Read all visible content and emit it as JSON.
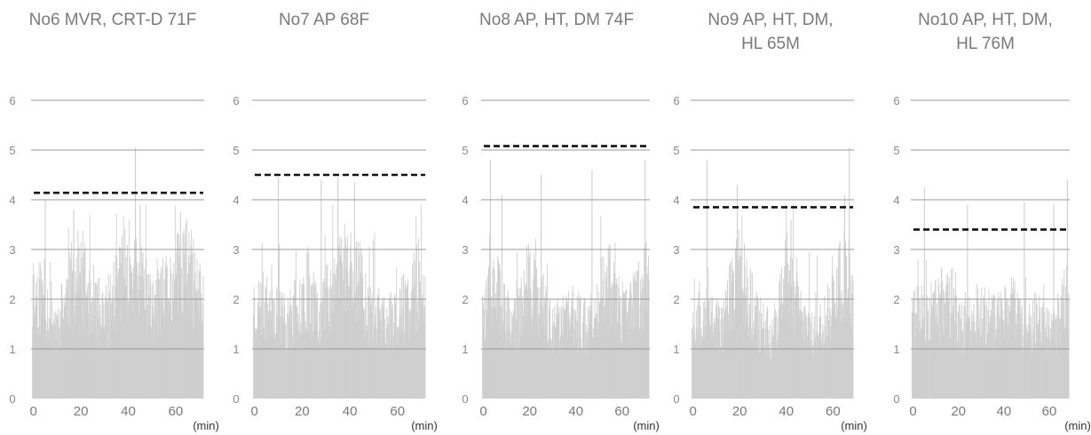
{
  "chart_data": [
    {
      "type": "bar",
      "title_lines": [
        "No6 MVR, CRT-D 71F"
      ],
      "x_unit": "(min)",
      "x_ticks": [
        0,
        20,
        40,
        60
      ],
      "y_ticks": [
        0,
        1,
        2,
        3,
        4,
        5,
        6
      ],
      "xlim": [
        -1,
        72
      ],
      "ylim": [
        0,
        6
      ],
      "threshold": 4.14,
      "seed": 11,
      "shape": [
        [
          0,
          2.3
        ],
        [
          5,
          2.1
        ],
        [
          10,
          1.6
        ],
        [
          18,
          2.7
        ],
        [
          24,
          2.2
        ],
        [
          30,
          1.7
        ],
        [
          38,
          2.9
        ],
        [
          44,
          2.6
        ],
        [
          50,
          1.9
        ],
        [
          58,
          2.4
        ],
        [
          64,
          2.9
        ],
        [
          72,
          2.0
        ]
      ],
      "peaks": [
        [
          5,
          4.0
        ],
        [
          17,
          3.8
        ],
        [
          43,
          5.05
        ],
        [
          45,
          3.9
        ],
        [
          62,
          3.75
        ]
      ]
    },
    {
      "type": "bar",
      "title_lines": [
        "No7 AP  68F"
      ],
      "x_unit": "(min)",
      "x_ticks": [
        0,
        20,
        40,
        60
      ],
      "y_ticks": [
        0,
        1,
        2,
        3,
        4,
        5,
        6
      ],
      "xlim": [
        -1,
        72
      ],
      "ylim": [
        0,
        6
      ],
      "threshold": 4.5,
      "seed": 23,
      "shape": [
        [
          0,
          1.9
        ],
        [
          8,
          2.1
        ],
        [
          14,
          1.6
        ],
        [
          22,
          2.4
        ],
        [
          28,
          1.9
        ],
        [
          35,
          2.7
        ],
        [
          42,
          2.9
        ],
        [
          48,
          1.9
        ],
        [
          56,
          1.6
        ],
        [
          64,
          2.0
        ],
        [
          70,
          2.6
        ],
        [
          72,
          2.3
        ]
      ],
      "peaks": [
        [
          10,
          4.45
        ],
        [
          28,
          4.4
        ],
        [
          35,
          4.45
        ],
        [
          42,
          4.35
        ],
        [
          68,
          3.1
        ]
      ]
    },
    {
      "type": "bar",
      "title_lines": [
        "No8 AP, HT, DM 74F"
      ],
      "x_unit": "(min)",
      "x_ticks": [
        0,
        20,
        40,
        60
      ],
      "y_ticks": [
        0,
        1,
        2,
        3,
        4,
        5,
        6
      ],
      "xlim": [
        -1,
        72
      ],
      "ylim": [
        0,
        6
      ],
      "threshold": 5.08,
      "seed": 37,
      "shape": [
        [
          0,
          1.9
        ],
        [
          6,
          2.3
        ],
        [
          12,
          1.5
        ],
        [
          22,
          2.5
        ],
        [
          30,
          1.4
        ],
        [
          38,
          1.8
        ],
        [
          46,
          1.5
        ],
        [
          54,
          2.6
        ],
        [
          60,
          1.7
        ],
        [
          66,
          2.1
        ],
        [
          72,
          2.8
        ]
      ],
      "peaks": [
        [
          3,
          4.8
        ],
        [
          8,
          4.1
        ],
        [
          25,
          4.5
        ],
        [
          47,
          4.6
        ],
        [
          70,
          4.8
        ]
      ]
    },
    {
      "type": "bar",
      "title_lines": [
        "No9 AP, HT, DM,",
        "HL 65M"
      ],
      "x_unit": "(min)",
      "x_ticks": [
        0,
        20,
        40,
        60
      ],
      "y_ticks": [
        0,
        1,
        2,
        3,
        4,
        5,
        6
      ],
      "xlim": [
        -1,
        69
      ],
      "ylim": [
        0,
        6
      ],
      "threshold": 3.85,
      "seed": 53,
      "shape": [
        [
          0,
          1.6
        ],
        [
          6,
          2.1
        ],
        [
          12,
          1.5
        ],
        [
          20,
          2.8
        ],
        [
          28,
          1.6
        ],
        [
          34,
          1.4
        ],
        [
          40,
          2.6
        ],
        [
          46,
          1.8
        ],
        [
          54,
          1.4
        ],
        [
          62,
          2.4
        ],
        [
          66,
          2.7
        ],
        [
          69,
          1.9
        ]
      ],
      "peaks": [
        [
          6,
          4.8
        ],
        [
          19,
          4.3
        ],
        [
          42,
          3.6
        ],
        [
          67,
          5.05
        ],
        [
          65,
          4.1
        ]
      ]
    },
    {
      "type": "bar",
      "title_lines": [
        "No10 AP, HT, DM,",
        "HL 76M"
      ],
      "x_unit": "(min)",
      "x_ticks": [
        0,
        20,
        40,
        60
      ],
      "y_ticks": [
        0,
        1,
        2,
        3,
        4,
        5,
        6
      ],
      "xlim": [
        -1,
        69
      ],
      "ylim": [
        0,
        6
      ],
      "threshold": 3.4,
      "seed": 71,
      "shape": [
        [
          0,
          1.7
        ],
        [
          8,
          1.9
        ],
        [
          14,
          2.1
        ],
        [
          22,
          1.5
        ],
        [
          30,
          1.9
        ],
        [
          36,
          1.6
        ],
        [
          42,
          2.0
        ],
        [
          50,
          1.5
        ],
        [
          56,
          1.9
        ],
        [
          62,
          1.4
        ],
        [
          69,
          2.3
        ]
      ],
      "peaks": [
        [
          5,
          4.25
        ],
        [
          24,
          3.9
        ],
        [
          49,
          3.95
        ],
        [
          62,
          3.9
        ],
        [
          68,
          4.4
        ]
      ]
    }
  ],
  "colors": {
    "bars": "#cfcfcf",
    "gridline": "#9a9a9a",
    "threshold": "#111111",
    "text": "#7a7a7a",
    "axis_text": "#8a8a8a"
  }
}
